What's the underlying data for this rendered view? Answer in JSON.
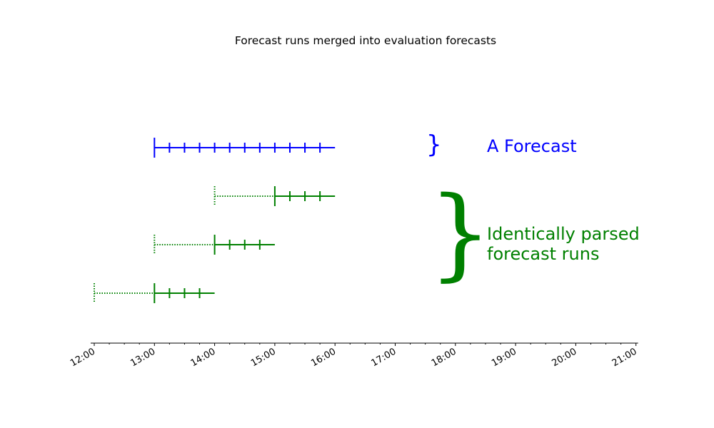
{
  "title": "Forecast runs merged into evaluation forecasts",
  "labels": {
    "evaluation_forecast": "A Forecast",
    "runs_line1": "Identically parsed",
    "runs_line2": "forecast runs"
  },
  "colors": {
    "evaluation": "#0000ff",
    "runs": "#008000",
    "axis": "#000000"
  },
  "axis": {
    "tick_labels": [
      "12:00",
      "13:00",
      "14:00",
      "15:00",
      "16:00",
      "17:00",
      "18:00",
      "19:00",
      "20:00",
      "21:00"
    ],
    "start_hour": 12,
    "end_hour": 21,
    "minor_tick_minutes": 15
  },
  "chart_data": {
    "type": "timeline",
    "x_unit": "time of day",
    "evaluation_forecast": {
      "start": "13:00",
      "end": "16:00",
      "ticks": [
        "13:00",
        "13:15",
        "13:30",
        "13:45",
        "14:00",
        "14:15",
        "14:30",
        "14:45",
        "15:00",
        "15:15",
        "15:30",
        "15:45"
      ]
    },
    "runs": [
      {
        "issued": "14:00",
        "valid_start": "15:00",
        "valid_end": "16:00",
        "ticks": [
          "15:00",
          "15:15",
          "15:30",
          "15:45"
        ]
      },
      {
        "issued": "13:00",
        "valid_start": "14:00",
        "valid_end": "15:00",
        "ticks": [
          "14:00",
          "14:15",
          "14:30",
          "14:45"
        ]
      },
      {
        "issued": "12:00",
        "valid_start": "13:00",
        "valid_end": "14:00",
        "ticks": [
          "13:00",
          "13:15",
          "13:30",
          "13:45"
        ]
      }
    ]
  }
}
